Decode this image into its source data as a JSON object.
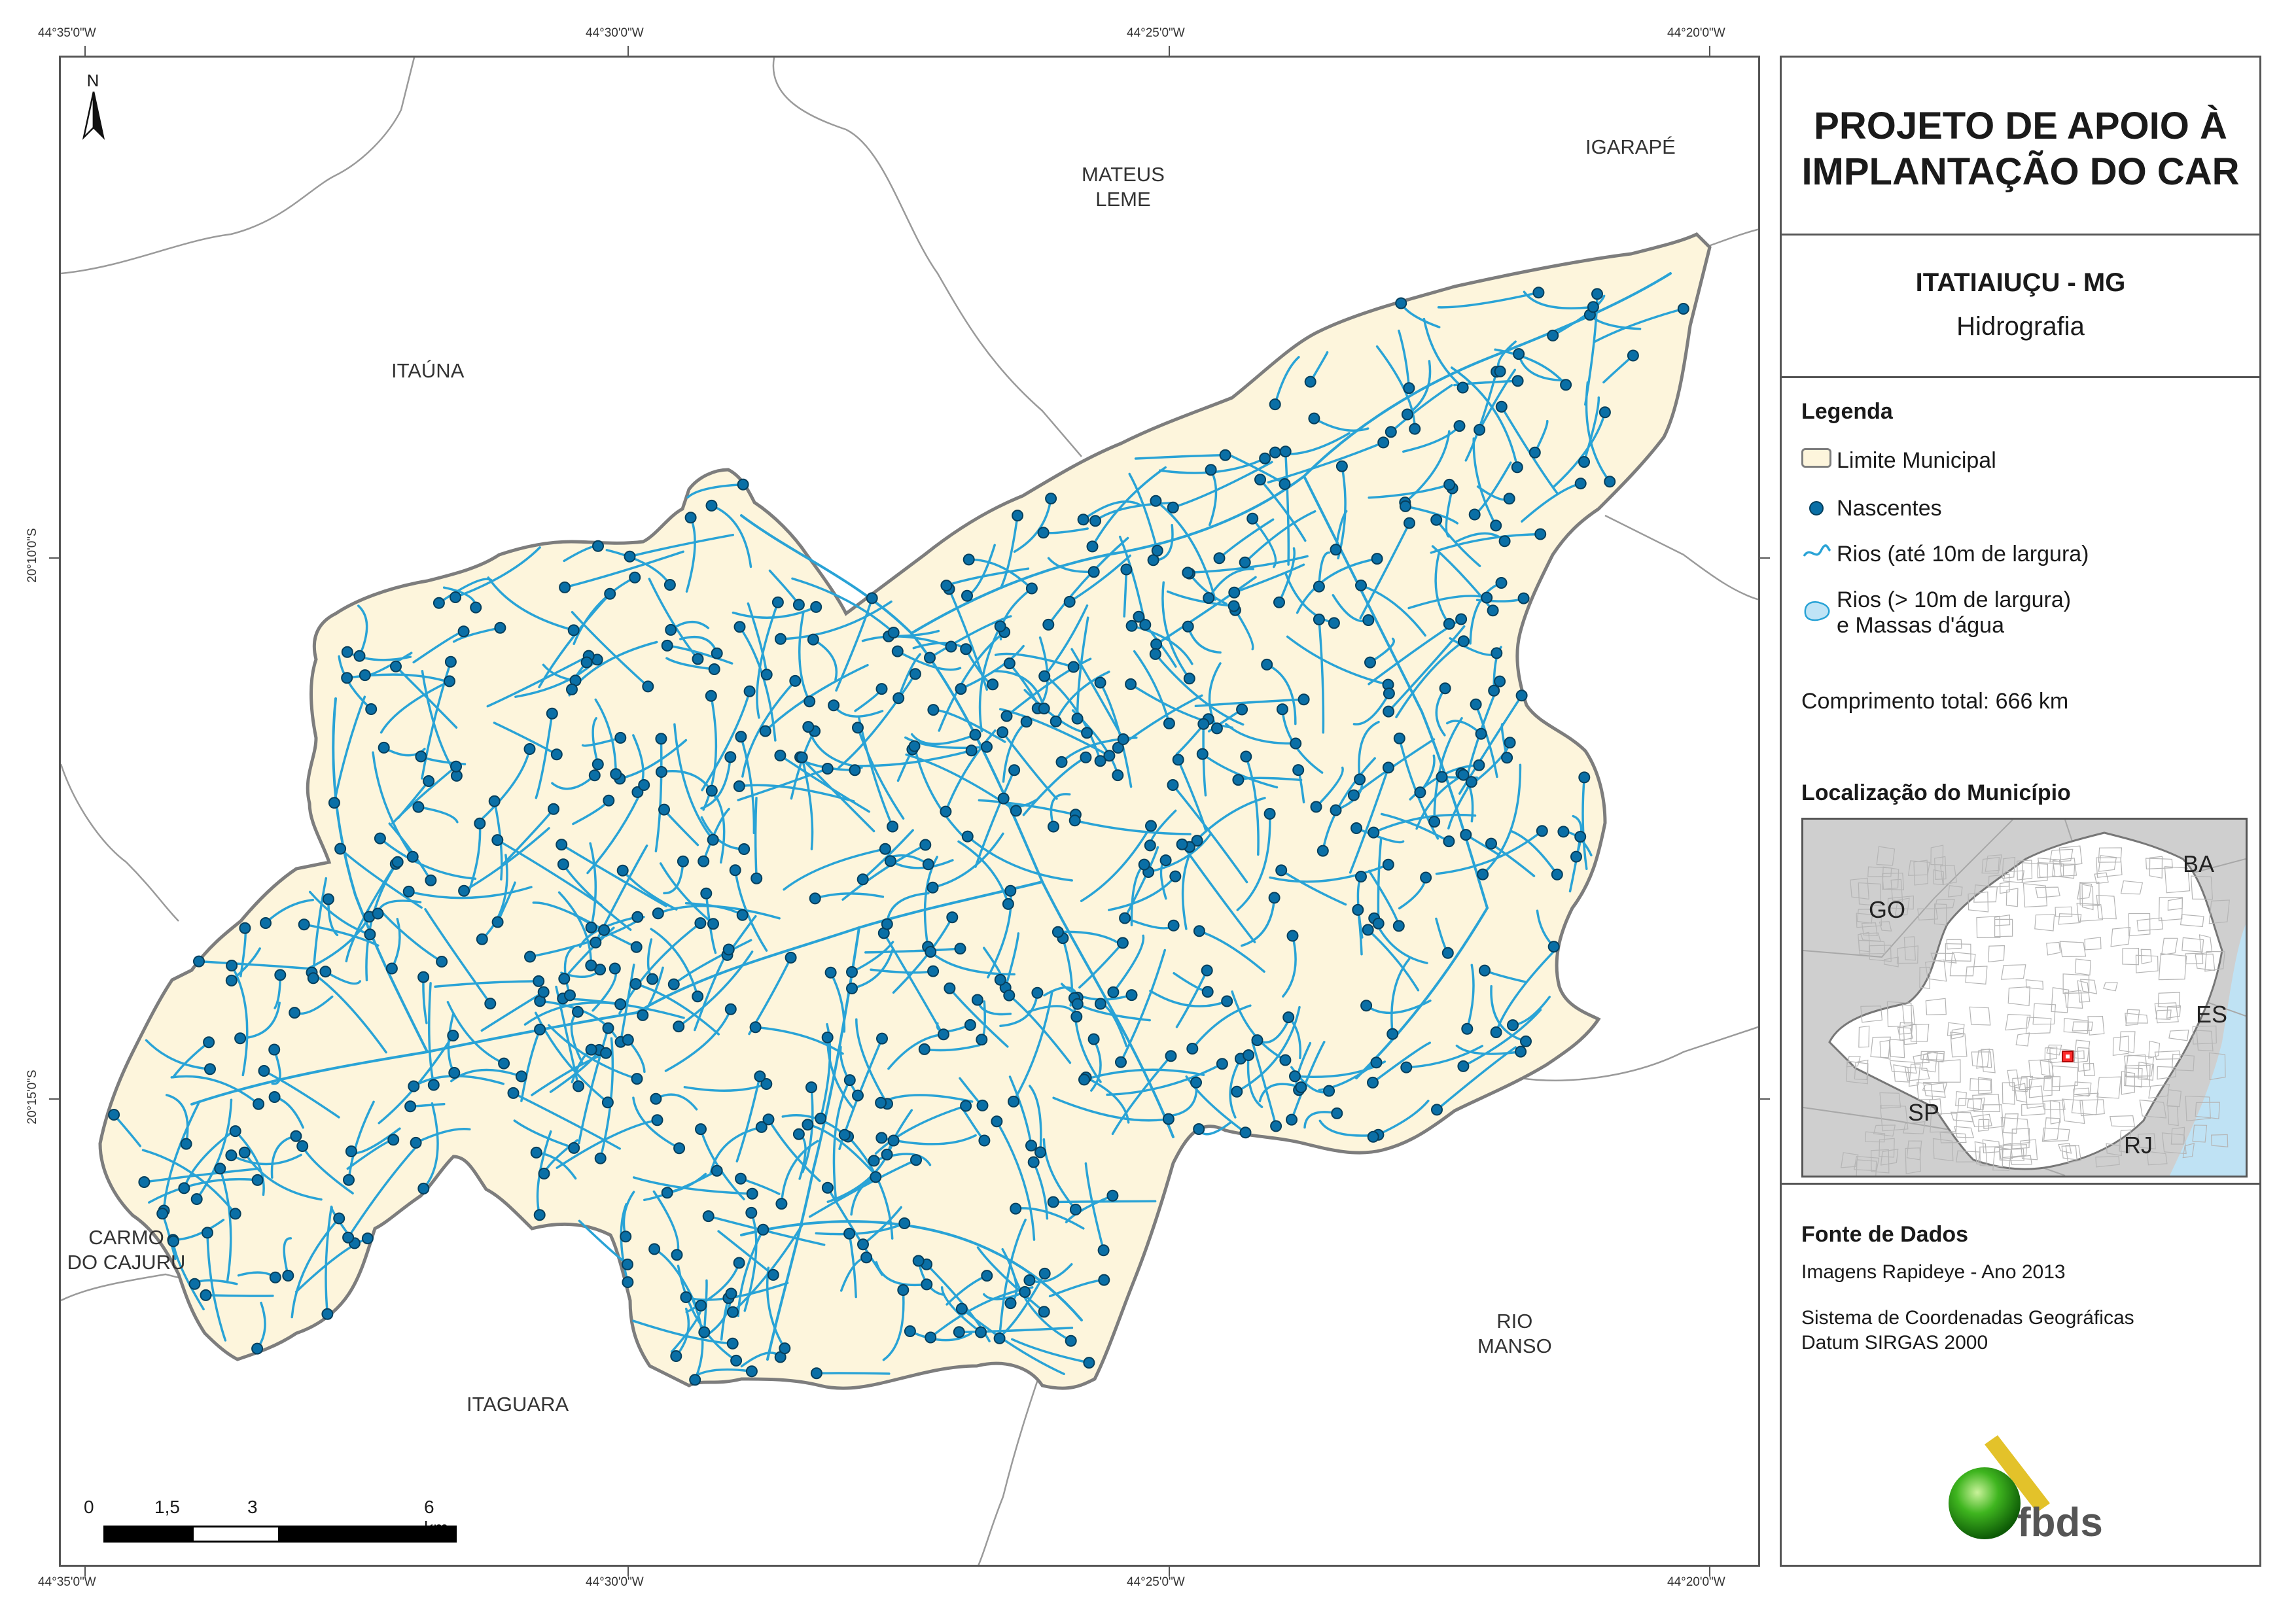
{
  "coords": {
    "top": [
      "44°35'0\"W",
      "44°30'0\"W",
      "44°25'0\"W",
      "44°20'0\"W"
    ],
    "bottom": [
      "44°35'0\"W",
      "44°30'0\"W",
      "44°25'0\"W",
      "44°20'0\"W"
    ],
    "left": [
      "20°10'0\"S",
      "20°15'0\"S"
    ]
  },
  "map": {
    "north_label": "N",
    "places": {
      "mateus_leme": [
        "MATEUS",
        "LEME"
      ],
      "igarape": "IGARAPÉ",
      "itauna": "ITAÚNA",
      "carmo": [
        "CARMO",
        "DO CAJURU"
      ],
      "rio_manso": [
        "RIO",
        "MANSO"
      ],
      "itaguara": "ITAGUARA"
    },
    "scale": {
      "labels": [
        "0",
        "1,5",
        "3",
        "6 km"
      ]
    },
    "colors": {
      "municipality": "#fdf5dc",
      "river": "#29a3d6",
      "spring": "#0a6fa6",
      "border": "#7d7d7d"
    }
  },
  "panel": {
    "title": [
      "PROJETO DE APOIO À",
      "IMPLANTAÇÃO DO CAR"
    ],
    "municipality": "ITATIAIUÇU - MG",
    "theme": "Hidrografia",
    "legend": {
      "heading": "Legenda",
      "items": [
        "Limite Municipal",
        "Nascentes",
        "Rios (até 10m de largura)",
        "Rios (> 10m de largura)",
        "e Massas d'água"
      ]
    },
    "total_length": "Comprimento total: 666 km",
    "location": {
      "heading": "Localização do Município",
      "states": [
        "BA",
        "GO",
        "ES",
        "SP",
        "RJ"
      ]
    },
    "sources": {
      "heading": "Fonte de Dados",
      "lines": [
        "Imagens Rapideye - Ano 2013",
        "Sistema de Coordenadas Geográficas",
        "Datum SIRGAS 2000"
      ]
    },
    "logo_text": "fbds"
  }
}
